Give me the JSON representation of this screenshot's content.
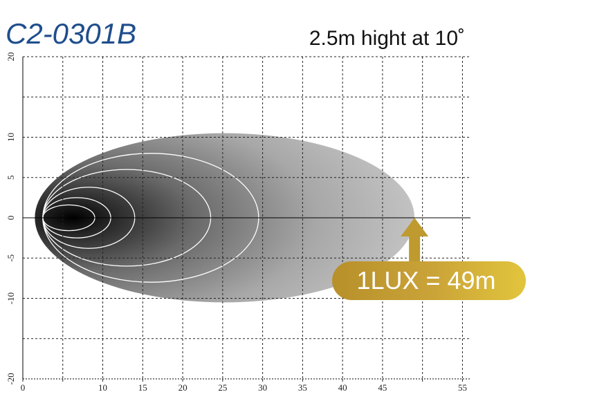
{
  "chart_data": {
    "type": "isolux",
    "title": "C2-0301B",
    "subtitle": "2.5m hight at 10˚",
    "xlim": [
      0,
      56
    ],
    "ylim": [
      -20,
      20
    ],
    "xticks": [
      0,
      {
        "value": 5,
        "label": null
      },
      10,
      15,
      20,
      25,
      30,
      35,
      40,
      45,
      {
        "value": 50,
        "label": null
      },
      55
    ],
    "yticks": [
      -20,
      {
        "value": -15,
        "label": null
      },
      -10,
      -5,
      0,
      5,
      10,
      {
        "value": 15,
        "label": null
      },
      20
    ],
    "grid": true,
    "contours": [
      {
        "x": [
          1.5,
          49
        ],
        "half_width": 10.5
      },
      {
        "x": [
          2.5,
          29.5
        ],
        "half_width": 8
      },
      {
        "x": [
          2.5,
          23.5
        ],
        "half_width": 6
      },
      {
        "x": [
          2.5,
          14
        ],
        "half_width": 3.8
      },
      {
        "x": [
          2.5,
          11
        ],
        "half_width": 2.5
      },
      {
        "x": [
          2.5,
          9
        ],
        "half_width": 1.6
      }
    ],
    "annotation": {
      "text": "1LUX = 49m",
      "x": 49
    }
  }
}
